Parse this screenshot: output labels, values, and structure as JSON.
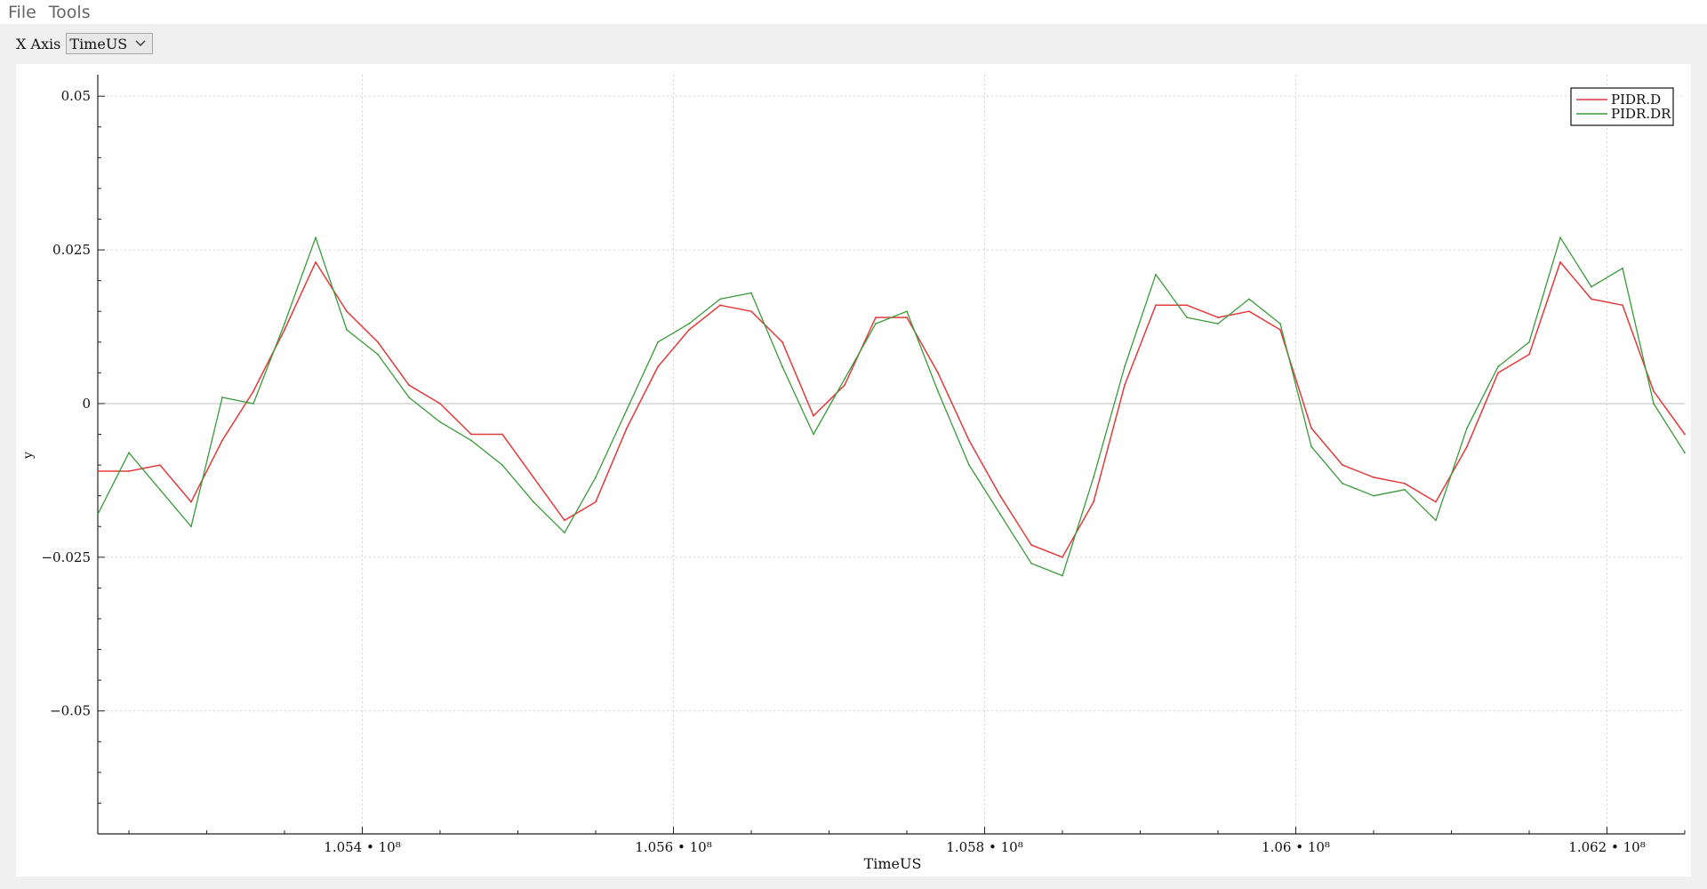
{
  "menu": {
    "file": "File",
    "tools": "Tools"
  },
  "toolbar": {
    "x_axis_label": "X Axis",
    "x_axis_selected": "TimeUS"
  },
  "colors": {
    "series_d": "#e03c3c",
    "series_dr": "#3a9a3a",
    "grid": "#d4d4d4",
    "zero_line": "#bdbdbd"
  },
  "chart_data": {
    "type": "line",
    "xlabel": "TimeUS",
    "ylabel": "y",
    "xlim": [
      105230000,
      106250000
    ],
    "ylim": [
      -0.07,
      0.0535
    ],
    "x_ticks": [
      105400000,
      105600000,
      105800000,
      106000000,
      106200000
    ],
    "x_tick_labels": [
      "1.054 • 10⁸",
      "1.056 • 10⁸",
      "1.058 • 10⁸",
      "1.06 • 10⁸",
      "1.062 • 10⁸"
    ],
    "y_ticks": [
      0.05,
      0.025,
      0,
      -0.025,
      -0.05
    ],
    "y_tick_labels": [
      "0.05",
      "0.025",
      "0",
      "−0.025",
      "−0.05"
    ],
    "grid": true,
    "legend_position": "top-right",
    "series": [
      {
        "name": "PIDR.D",
        "color": "#e03c3c",
        "x": [
          105230000,
          105250000,
          105270000,
          105290000,
          105310000,
          105330000,
          105350000,
          105370000,
          105390000,
          105410000,
          105430000,
          105450000,
          105470000,
          105490000,
          105510000,
          105530000,
          105550000,
          105570000,
          105590000,
          105610000,
          105630000,
          105650000,
          105670000,
          105690000,
          105710000,
          105730000,
          105750000,
          105770000,
          105790000,
          105810000,
          105830000,
          105850000,
          105870000,
          105890000,
          105910000,
          105930000,
          105950000,
          105970000,
          105990000,
          106010000,
          106030000,
          106050000,
          106070000,
          106090000,
          106110000,
          106130000,
          106150000,
          106170000,
          106190000,
          106210000,
          106230000,
          106250000
        ],
        "values": [
          -0.011,
          -0.011,
          -0.01,
          -0.016,
          -0.006,
          0.002,
          0.012,
          0.023,
          0.015,
          0.01,
          0.003,
          0.0,
          -0.005,
          -0.005,
          -0.012,
          -0.019,
          -0.016,
          -0.004,
          0.006,
          0.012,
          0.016,
          0.015,
          0.01,
          -0.002,
          0.003,
          0.014,
          0.014,
          0.005,
          -0.006,
          -0.015,
          -0.023,
          -0.025,
          -0.016,
          0.003,
          0.016,
          0.016,
          0.014,
          0.015,
          0.012,
          -0.004,
          -0.01,
          -0.012,
          -0.013,
          -0.016,
          -0.007,
          0.005,
          0.008,
          0.023,
          0.017,
          0.016,
          0.002,
          -0.005
        ]
      },
      {
        "name": "PIDR.DR",
        "color": "#3a9a3a",
        "x": [
          105230000,
          105250000,
          105270000,
          105290000,
          105310000,
          105330000,
          105350000,
          105370000,
          105390000,
          105410000,
          105430000,
          105450000,
          105470000,
          105490000,
          105510000,
          105530000,
          105550000,
          105570000,
          105590000,
          105610000,
          105630000,
          105650000,
          105670000,
          105690000,
          105710000,
          105730000,
          105750000,
          105770000,
          105790000,
          105810000,
          105830000,
          105850000,
          105870000,
          105890000,
          105910000,
          105930000,
          105950000,
          105970000,
          105990000,
          106010000,
          106030000,
          106050000,
          106070000,
          106090000,
          106110000,
          106130000,
          106150000,
          106170000,
          106190000,
          106210000,
          106230000,
          106250000
        ],
        "values": [
          -0.018,
          -0.008,
          -0.014,
          -0.02,
          0.001,
          0.0,
          0.013,
          0.027,
          0.012,
          0.008,
          0.001,
          -0.003,
          -0.006,
          -0.01,
          -0.016,
          -0.021,
          -0.012,
          -0.001,
          0.01,
          0.013,
          0.017,
          0.018,
          0.006,
          -0.005,
          0.004,
          0.013,
          0.015,
          0.002,
          -0.01,
          -0.018,
          -0.026,
          -0.028,
          -0.012,
          0.006,
          0.021,
          0.014,
          0.013,
          0.017,
          0.013,
          -0.007,
          -0.013,
          -0.015,
          -0.014,
          -0.019,
          -0.004,
          0.006,
          0.01,
          0.027,
          0.019,
          0.022,
          0.0,
          -0.008
        ]
      }
    ]
  }
}
